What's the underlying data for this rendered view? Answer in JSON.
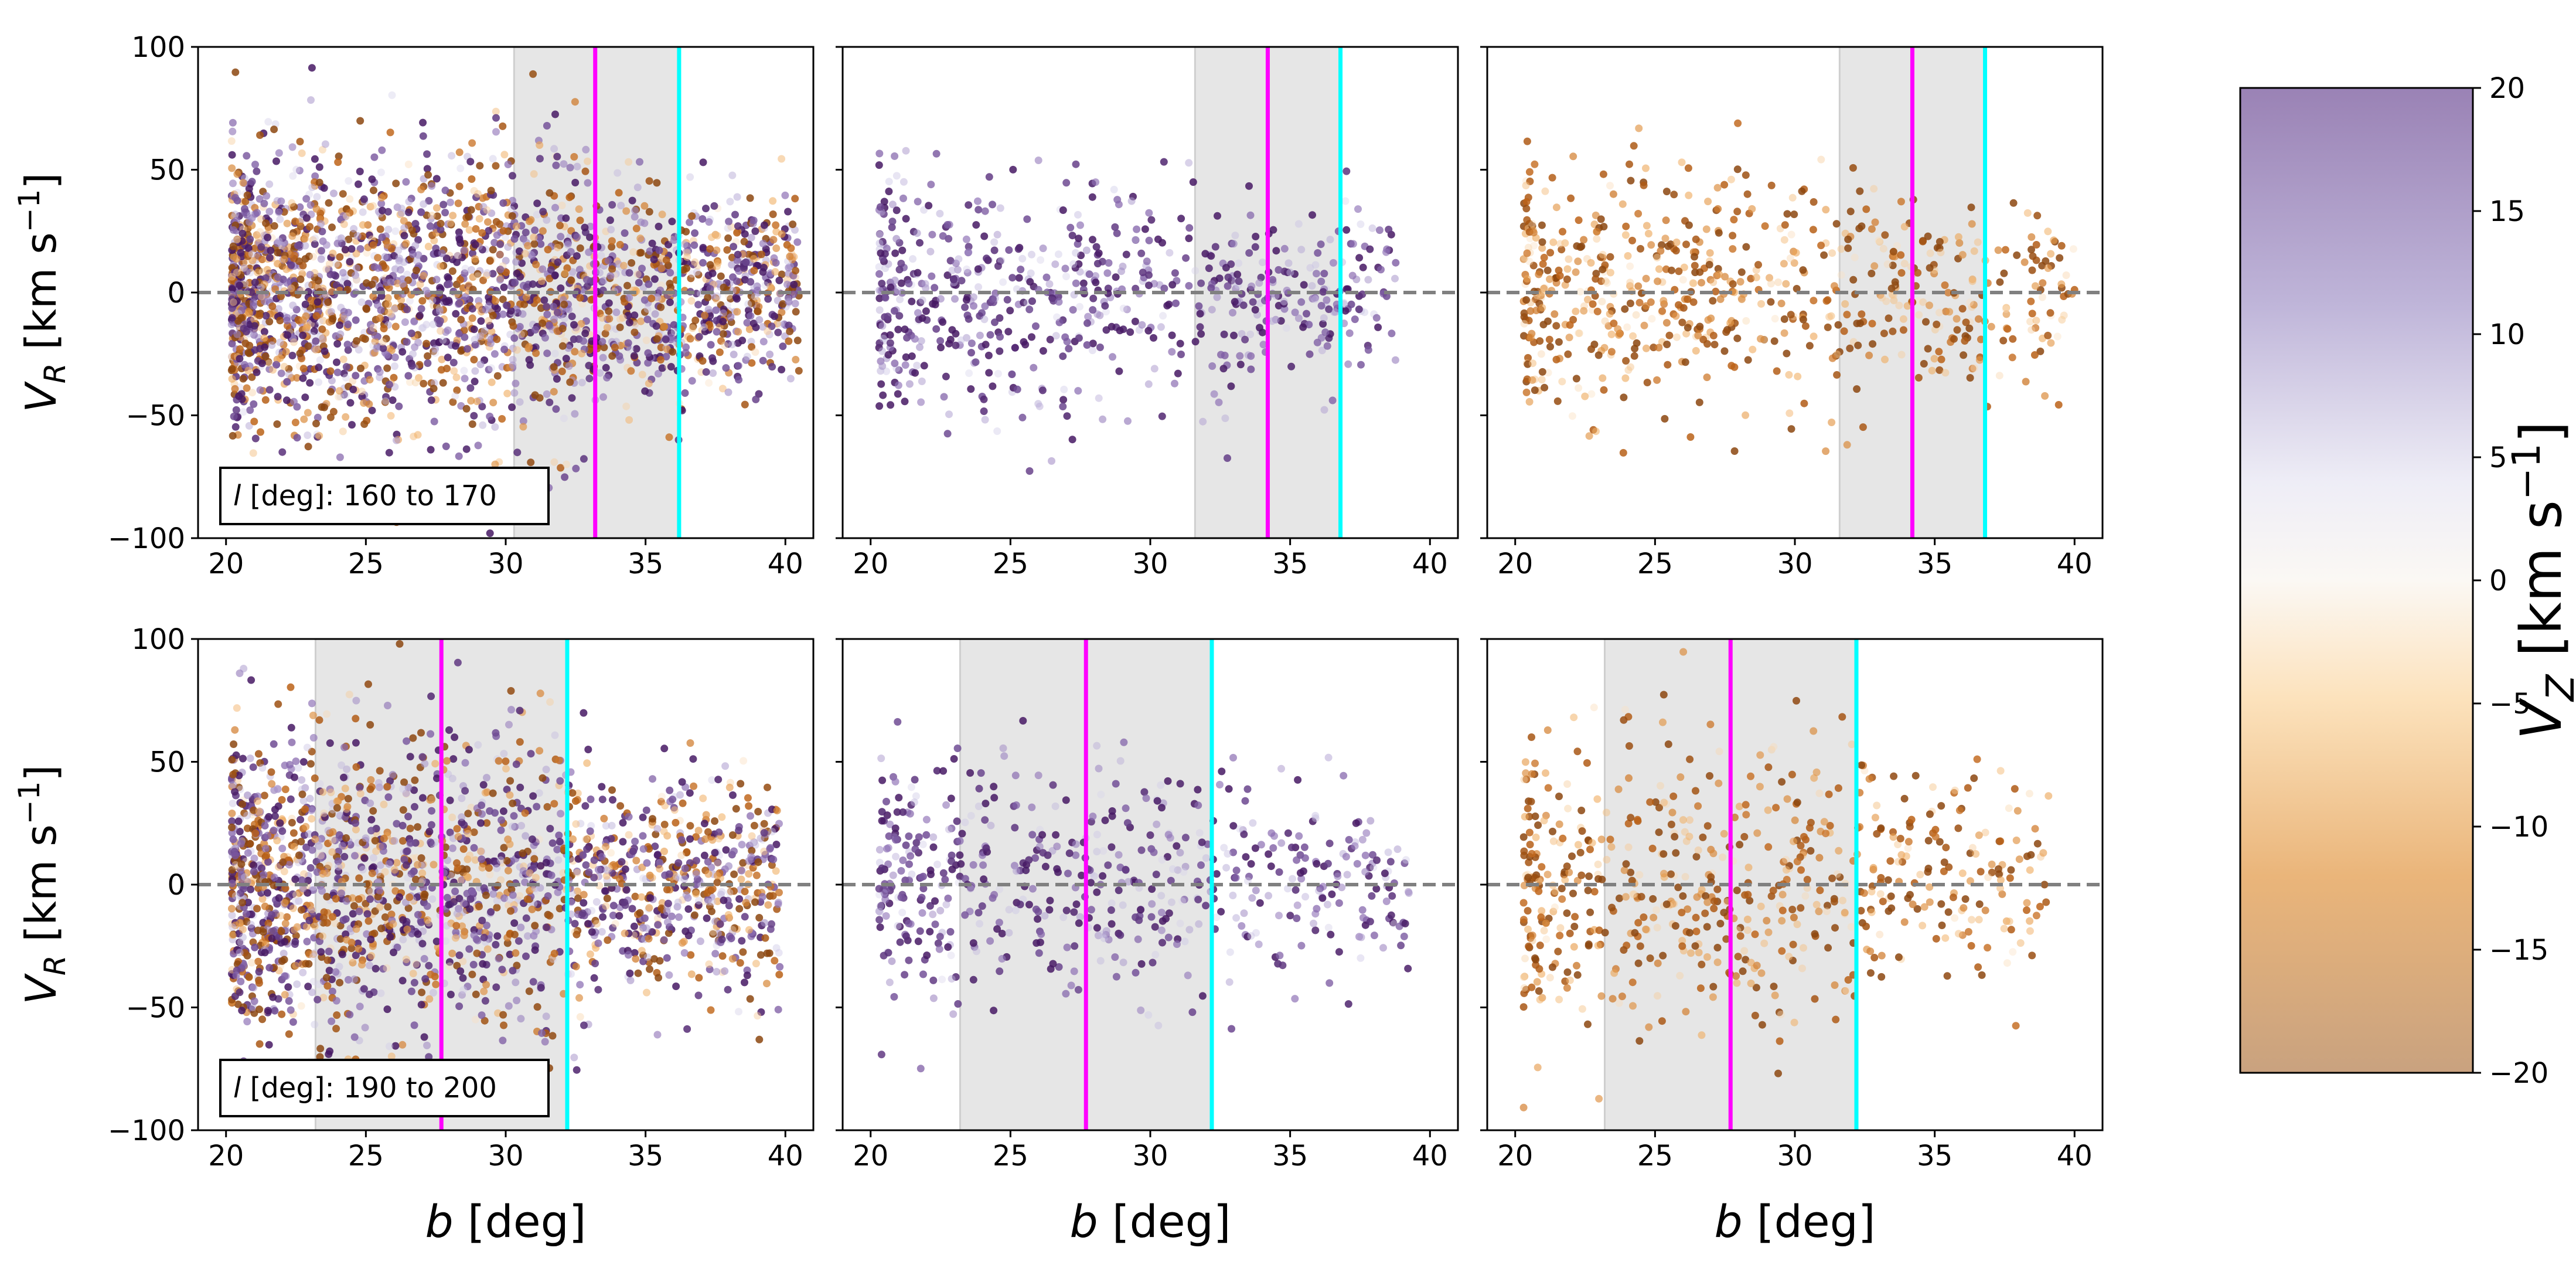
{
  "chart_data": {
    "type": "scatter",
    "layout": "2 rows x 3 columns of scatter panels sharing axes, plus a vertical colorbar on the right",
    "xlabel": "b [deg]",
    "ylabel": "V_R [km s^-1]",
    "xlim": [
      19,
      41
    ],
    "ylim": [
      -100,
      100
    ],
    "xticks": [
      20,
      25,
      30,
      35,
      40
    ],
    "yticks": [
      -100,
      -50,
      0,
      50,
      100
    ],
    "zero_line": {
      "y": 0,
      "style": "dashed",
      "color": "#808080"
    },
    "row_labels": [
      {
        "prefix": "l",
        "text": " [deg]: 160 to 170"
      },
      {
        "prefix": "l",
        "text": " [deg]: 190 to 200"
      }
    ],
    "colorbar": {
      "label": "V_Z [km s^-1]",
      "min": -20,
      "max": 20,
      "ticks": [
        20,
        15,
        10,
        5,
        0,
        -5,
        -10,
        -15,
        -20
      ],
      "tick_labels": [
        "20",
        "15",
        "10",
        "5",
        "0",
        "−5",
        "−10",
        "−15",
        "−20"
      ],
      "colors": [
        "#b37a3a",
        "#e08a1c",
        "#f7c98a",
        "#fdf3e6",
        "#f3f3f7",
        "#c8c3e0",
        "#8870b3",
        "#4a1a6e"
      ]
    },
    "panels": [
      {
        "row": 0,
        "col": 0,
        "band": [
          30.3,
          36.2
        ],
        "magenta_line": 33.2,
        "cyan_line": 36.2,
        "npoints": 2600,
        "bmin": 20.2,
        "bmax": 40.5,
        "sign": "mixed",
        "spread": 28
      },
      {
        "row": 0,
        "col": 1,
        "band": [
          31.6,
          36.8
        ],
        "magenta_line": 34.2,
        "cyan_line": 36.8,
        "npoints": 700,
        "bmin": 20.3,
        "bmax": 38.8,
        "sign": "positive",
        "spread": 24
      },
      {
        "row": 0,
        "col": 2,
        "band": [
          31.6,
          36.8
        ],
        "magenta_line": 34.2,
        "cyan_line": 36.8,
        "npoints": 700,
        "bmin": 20.3,
        "bmax": 40.0,
        "sign": "negative",
        "spread": 25
      },
      {
        "row": 1,
        "col": 0,
        "band": [
          23.2,
          32.2
        ],
        "magenta_line": 27.7,
        "cyan_line": 32.2,
        "npoints": 2100,
        "bmin": 20.2,
        "bmax": 39.8,
        "sign": "mixed",
        "spread": 30
      },
      {
        "row": 1,
        "col": 1,
        "band": [
          23.2,
          32.2
        ],
        "magenta_line": 27.7,
        "cyan_line": 32.2,
        "npoints": 600,
        "bmin": 20.3,
        "bmax": 39.3,
        "sign": "positive",
        "spread": 25
      },
      {
        "row": 1,
        "col": 2,
        "band": [
          23.2,
          32.2
        ],
        "magenta_line": 27.7,
        "cyan_line": 32.2,
        "npoints": 650,
        "bmin": 20.3,
        "bmax": 39.1,
        "sign": "negative",
        "spread": 30
      }
    ]
  }
}
